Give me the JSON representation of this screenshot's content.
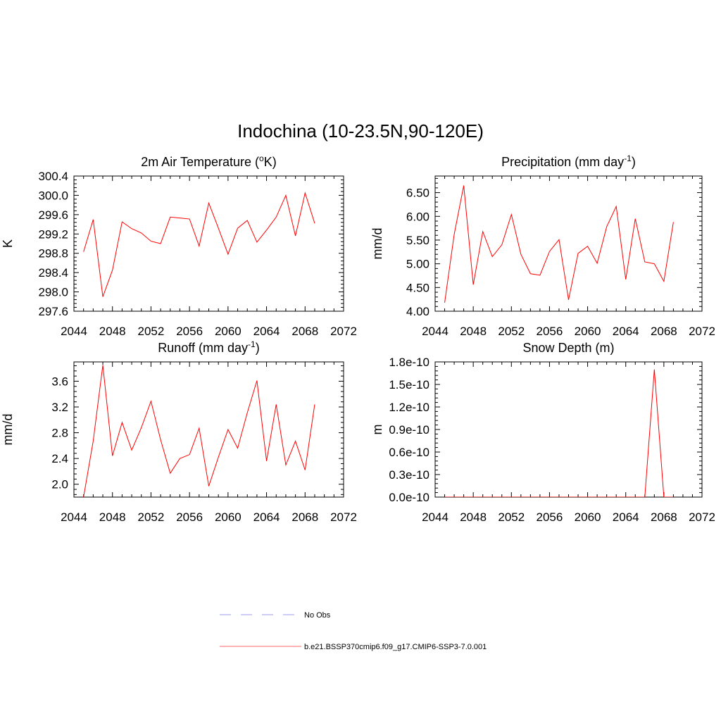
{
  "figure": {
    "title": "Indochina (10-23.5N,90-120E)"
  },
  "legend": {
    "items": [
      {
        "label": "No Obs",
        "color": "#9999ee",
        "style": "dashed"
      },
      {
        "label": "b.e21.BSSP370cmip6.f09_g17.CMIP6-SSP3-7.0.001",
        "color": "#ff6666",
        "style": "solid"
      }
    ]
  },
  "chart_data": [
    {
      "type": "line",
      "title": "2m Air Temperature (",
      "title_sup": "o",
      "title_tail": "K)",
      "ylabel": "K",
      "xlim": [
        2044,
        2072
      ],
      "ylim": [
        297.6,
        300.4
      ],
      "xticks": [
        2044,
        2048,
        2052,
        2056,
        2060,
        2064,
        2068,
        2072
      ],
      "xtick_labels": [
        "2044",
        "2048",
        "2052",
        "2056",
        "2060",
        "2064",
        "2068",
        "2072"
      ],
      "yticks": [
        297.6,
        298.0,
        298.4,
        298.8,
        299.2,
        299.6,
        300.0,
        300.4
      ],
      "ytick_labels": [
        "297.6",
        "298.0",
        "298.4",
        "298.8",
        "299.2",
        "299.6",
        "300.0",
        "300.4"
      ],
      "line_color": "#ff0000",
      "series": [
        {
          "x": [
            2045,
            2046,
            2047,
            2048,
            2049,
            2050,
            2051,
            2052,
            2053,
            2054,
            2055,
            2056,
            2057,
            2058,
            2059,
            2060,
            2061,
            2062,
            2063,
            2064,
            2065,
            2066,
            2067,
            2068,
            2069
          ],
          "y": [
            298.83,
            299.5,
            297.9,
            298.45,
            299.45,
            299.31,
            299.22,
            299.05,
            299.0,
            299.55,
            299.53,
            299.51,
            298.95,
            299.84,
            299.32,
            298.78,
            299.32,
            299.48,
            299.03,
            299.28,
            299.55,
            300.0,
            299.16,
            300.05,
            299.42
          ]
        }
      ]
    },
    {
      "type": "line",
      "title": "Precipitation (mm day",
      "title_sup": "-1",
      "title_tail": ")",
      "ylabel": "mm/d",
      "xlim": [
        2044,
        2072
      ],
      "ylim": [
        4.0,
        6.85
      ],
      "xticks": [
        2044,
        2048,
        2052,
        2056,
        2060,
        2064,
        2068,
        2072
      ],
      "xtick_labels": [
        "2044",
        "2048",
        "2052",
        "2056",
        "2060",
        "2064",
        "2068",
        "2072"
      ],
      "yticks": [
        4.0,
        4.5,
        5.0,
        5.5,
        6.0,
        6.5
      ],
      "ytick_labels": [
        "4.00",
        "4.50",
        "5.00",
        "5.50",
        "6.00",
        "6.50"
      ],
      "line_color": "#ff0000",
      "series": [
        {
          "x": [
            2045,
            2046,
            2047,
            2048,
            2049,
            2050,
            2051,
            2052,
            2053,
            2054,
            2055,
            2056,
            2057,
            2058,
            2059,
            2060,
            2061,
            2062,
            2063,
            2064,
            2065,
            2066,
            2067,
            2068,
            2069
          ],
          "y": [
            4.18,
            5.62,
            6.65,
            4.56,
            5.68,
            5.15,
            5.4,
            6.04,
            5.2,
            4.79,
            4.76,
            5.26,
            5.51,
            4.24,
            5.22,
            5.37,
            5.01,
            5.78,
            6.21,
            4.67,
            5.95,
            5.04,
            5.0,
            4.63,
            5.88
          ]
        }
      ]
    },
    {
      "type": "line",
      "title": "Runoff (mm day",
      "title_sup": "-1",
      "title_tail": ")",
      "ylabel": "mm/d",
      "xlim": [
        2044,
        2072
      ],
      "ylim": [
        1.8,
        3.9
      ],
      "xticks": [
        2044,
        2048,
        2052,
        2056,
        2060,
        2064,
        2068,
        2072
      ],
      "xtick_labels": [
        "2044",
        "2048",
        "2052",
        "2056",
        "2060",
        "2064",
        "2068",
        "2072"
      ],
      "yticks": [
        2.0,
        2.4,
        2.8,
        3.2,
        3.6
      ],
      "ytick_labels": [
        "2.0",
        "2.4",
        "2.8",
        "3.2",
        "3.6"
      ],
      "line_color": "#ff0000",
      "series": [
        {
          "x": [
            2045,
            2046,
            2047,
            2048,
            2049,
            2050,
            2051,
            2052,
            2053,
            2054,
            2055,
            2056,
            2057,
            2058,
            2059,
            2060,
            2061,
            2062,
            2063,
            2064,
            2065,
            2066,
            2067,
            2068,
            2069
          ],
          "y": [
            1.8,
            2.67,
            3.85,
            2.44,
            2.96,
            2.53,
            2.88,
            3.29,
            2.69,
            2.17,
            2.4,
            2.46,
            2.87,
            1.97,
            2.42,
            2.85,
            2.56,
            3.11,
            3.61,
            2.36,
            3.24,
            2.3,
            2.67,
            2.22,
            3.24
          ]
        }
      ]
    },
    {
      "type": "line",
      "title": "Snow Depth (m)",
      "title_sup": "",
      "title_tail": "",
      "ylabel": "m",
      "xlim": [
        2044,
        2072
      ],
      "ylim": [
        0,
        1.8e-10
      ],
      "xticks": [
        2044,
        2048,
        2052,
        2056,
        2060,
        2064,
        2068,
        2072
      ],
      "xtick_labels": [
        "2044",
        "2048",
        "2052",
        "2056",
        "2060",
        "2064",
        "2068",
        "2072"
      ],
      "yticks": [
        0,
        3e-11,
        6e-11,
        9e-11,
        1.2e-10,
        1.5e-10,
        1.8e-10
      ],
      "ytick_labels": [
        "0.0e-10",
        "0.3e-10",
        "0.6e-10",
        "0.9e-10",
        "1.2e-10",
        "1.5e-10",
        "1.8e-10"
      ],
      "line_color": "#ff0000",
      "series": [
        {
          "x": [
            2045,
            2046,
            2047,
            2048,
            2049,
            2050,
            2051,
            2052,
            2053,
            2054,
            2055,
            2056,
            2057,
            2058,
            2059,
            2060,
            2061,
            2062,
            2063,
            2064,
            2065,
            2066,
            2067,
            2068,
            2069
          ],
          "y": [
            0,
            0,
            0,
            0,
            0,
            0,
            0,
            0,
            0,
            0,
            0,
            0,
            0,
            0,
            0,
            0,
            0,
            0,
            0,
            0,
            0,
            0,
            1.7e-10,
            0,
            0
          ]
        }
      ]
    }
  ]
}
